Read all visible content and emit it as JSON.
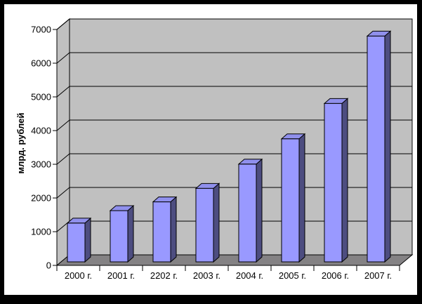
{
  "window": {
    "background": "#FFFFFF",
    "frame_color": "#000000"
  },
  "chart_data": {
    "type": "bar",
    "variant": "3d-column",
    "title": "",
    "xlabel": "",
    "ylabel": "млрд. рублей",
    "categories": [
      "2000 г.",
      "2001 г.",
      "2202 г.",
      "2003 г.",
      "2004 г.",
      "2005 г.",
      "2006 г.",
      "2007 г."
    ],
    "values": [
      1150,
      1520,
      1780,
      2180,
      2900,
      3650,
      4700,
      6700
    ],
    "ylim": [
      0,
      7000
    ],
    "ytick_step": 1000,
    "yticks": [
      0,
      1000,
      2000,
      3000,
      4000,
      5000,
      6000,
      7000
    ],
    "grid": true,
    "legend": false,
    "colors": {
      "bar_front": "#9999FF",
      "bar_top": "#9090EC",
      "bar_side": "#4D4D80",
      "wall": "#C0C0C0",
      "floor": "#848284",
      "outline": "#000000",
      "text": "#000000",
      "background": "#FFFFFF",
      "frame": "#000000"
    }
  }
}
